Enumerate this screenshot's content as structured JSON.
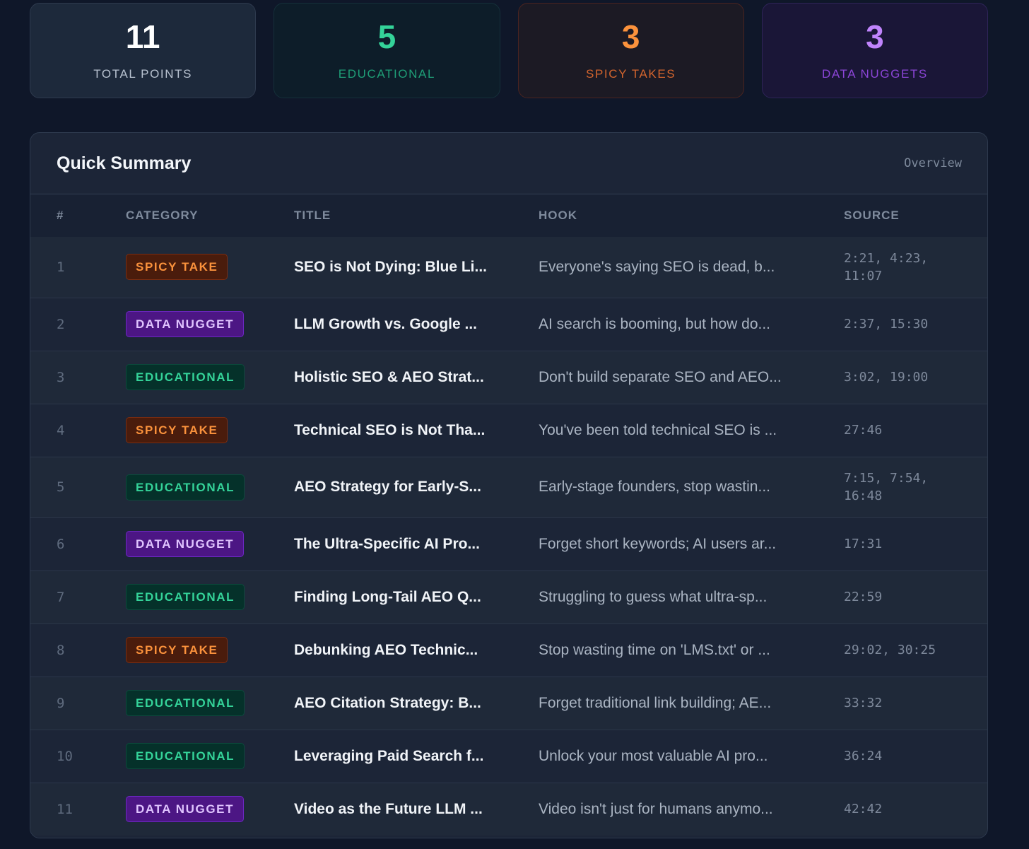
{
  "stats": {
    "total": {
      "value": "11",
      "label": "TOTAL POINTS"
    },
    "educational": {
      "value": "5",
      "label": "EDUCATIONAL"
    },
    "spicy": {
      "value": "3",
      "label": "SPICY TAKES"
    },
    "data": {
      "value": "3",
      "label": "DATA NUGGETS"
    }
  },
  "summary": {
    "title": "Quick Summary",
    "tag": "Overview",
    "columns": {
      "num": "#",
      "category": "CATEGORY",
      "title": "TITLE",
      "hook": "HOOK",
      "source": "SOURCE"
    },
    "rows": [
      {
        "num": "1",
        "category": "SPICY TAKE",
        "title": "SEO is Not Dying: Blue Li...",
        "hook": "Everyone's saying SEO is dead, b...",
        "source": "2:21, 4:23,\n11:07"
      },
      {
        "num": "2",
        "category": "DATA NUGGET",
        "title": "LLM Growth vs. Google ...",
        "hook": "AI search is booming, but how do...",
        "source": "2:37, 15:30"
      },
      {
        "num": "3",
        "category": "EDUCATIONAL",
        "title": "Holistic SEO & AEO Strat...",
        "hook": "Don't build separate SEO and AEO...",
        "source": "3:02, 19:00"
      },
      {
        "num": "4",
        "category": "SPICY TAKE",
        "title": "Technical SEO is Not Tha...",
        "hook": "You've been told technical SEO is ...",
        "source": "27:46"
      },
      {
        "num": "5",
        "category": "EDUCATIONAL",
        "title": "AEO Strategy for Early-S...",
        "hook": "Early-stage founders, stop wastin...",
        "source": "7:15, 7:54,\n16:48"
      },
      {
        "num": "6",
        "category": "DATA NUGGET",
        "title": "The Ultra-Specific AI Pro...",
        "hook": "Forget short keywords; AI users ar...",
        "source": "17:31"
      },
      {
        "num": "7",
        "category": "EDUCATIONAL",
        "title": "Finding Long-Tail AEO Q...",
        "hook": "Struggling to guess what ultra-sp...",
        "source": "22:59"
      },
      {
        "num": "8",
        "category": "SPICY TAKE",
        "title": "Debunking AEO Technic...",
        "hook": "Stop wasting time on 'LMS.txt' or ...",
        "source": "29:02, 30:25"
      },
      {
        "num": "9",
        "category": "EDUCATIONAL",
        "title": "AEO Citation Strategy: B...",
        "hook": "Forget traditional link building; AE...",
        "source": "33:32"
      },
      {
        "num": "10",
        "category": "EDUCATIONAL",
        "title": "Leveraging Paid Search f...",
        "hook": "Unlock your most valuable AI pro...",
        "source": "36:24"
      },
      {
        "num": "11",
        "category": "DATA NUGGET",
        "title": "Video as the Future LLM ...",
        "hook": "Video isn't just for humans anymo...",
        "source": "42:42"
      }
    ]
  }
}
